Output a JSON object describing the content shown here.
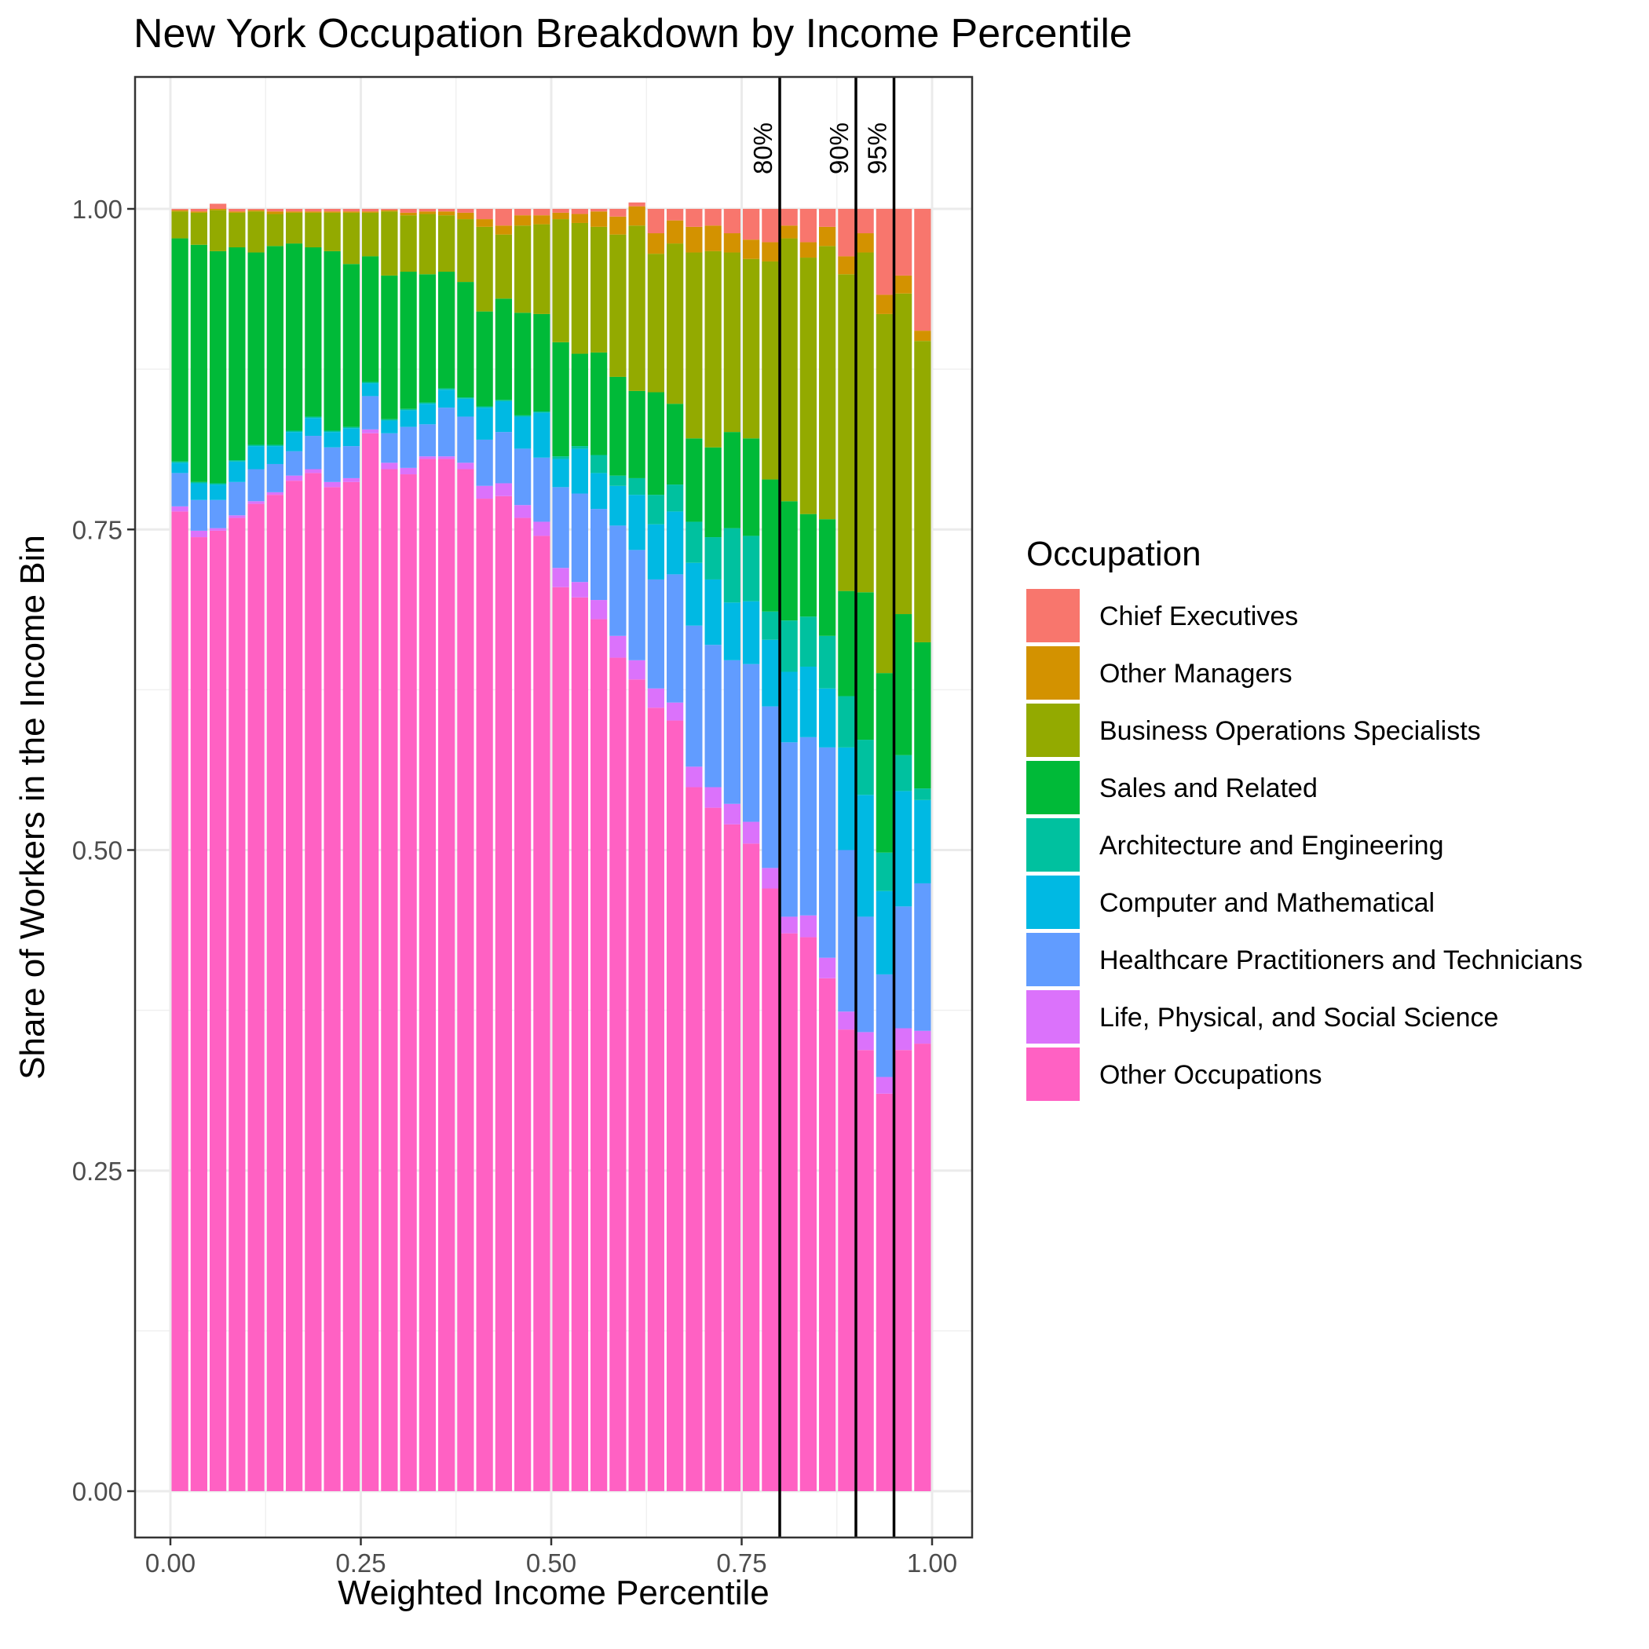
{
  "chart_data": {
    "type": "bar",
    "stacked": true,
    "title": "New York Occupation Breakdown by Income Percentile",
    "xlabel": "Weighted Income Percentile",
    "ylabel": "Share of Workers in the Income Bin",
    "xlim": [
      0,
      1
    ],
    "ylim": [
      0,
      1
    ],
    "x_ticks": [
      "0.00",
      "0.25",
      "0.50",
      "0.75",
      "1.00"
    ],
    "y_ticks": [
      "0.00",
      "0.25",
      "0.50",
      "0.75",
      "1.00"
    ],
    "grid": true,
    "legend_position": "right",
    "legend_title": "Occupation",
    "reference_lines": [
      {
        "x": 0.8,
        "label": "80%"
      },
      {
        "x": 0.9,
        "label": "90%"
      },
      {
        "x": 0.95,
        "label": "95%"
      }
    ],
    "x": [
      0.0125,
      0.0375,
      0.0625,
      0.0875,
      0.1125,
      0.1375,
      0.1625,
      0.1875,
      0.2125,
      0.2375,
      0.2625,
      0.2875,
      0.3125,
      0.3375,
      0.3625,
      0.3875,
      0.4125,
      0.4375,
      0.4625,
      0.4875,
      0.5125,
      0.5375,
      0.5625,
      0.5875,
      0.6125,
      0.6375,
      0.6625,
      0.6875,
      0.7125,
      0.7375,
      0.7625,
      0.7875,
      0.8125,
      0.8375,
      0.8625,
      0.8875,
      0.9125,
      0.9375,
      0.9625,
      0.9875
    ],
    "series": [
      {
        "name": "Other Occupations",
        "color": "#FF61C3",
        "values": [
          0.764,
          0.744,
          0.749,
          0.759,
          0.77,
          0.777,
          0.788,
          0.794,
          0.783,
          0.787,
          0.825,
          0.797,
          0.793,
          0.805,
          0.805,
          0.797,
          0.774,
          0.776,
          0.759,
          0.745,
          0.705,
          0.697,
          0.68,
          0.65,
          0.633,
          0.611,
          0.601,
          0.549,
          0.533,
          0.52,
          0.505,
          0.47,
          0.435,
          0.432,
          0.4,
          0.36,
          0.344,
          0.31,
          0.344,
          0.349
        ]
      },
      {
        "name": "Life, Physical, and Social Science",
        "color": "#DB72FB",
        "values": [
          0.004,
          0.005,
          0.002,
          0.002,
          0.002,
          0.002,
          0.004,
          0.003,
          0.004,
          0.003,
          0.003,
          0.005,
          0.005,
          0.002,
          0.002,
          0.005,
          0.01,
          0.01,
          0.01,
          0.011,
          0.015,
          0.012,
          0.015,
          0.017,
          0.015,
          0.015,
          0.014,
          0.016,
          0.016,
          0.016,
          0.017,
          0.016,
          0.013,
          0.017,
          0.016,
          0.014,
          0.014,
          0.013,
          0.017,
          0.01
        ]
      },
      {
        "name": "Healthcare Practitioners and Technicians",
        "color": "#619CFF",
        "values": [
          0.026,
          0.024,
          0.022,
          0.026,
          0.025,
          0.022,
          0.019,
          0.026,
          0.027,
          0.025,
          0.026,
          0.023,
          0.032,
          0.025,
          0.038,
          0.036,
          0.036,
          0.04,
          0.044,
          0.05,
          0.063,
          0.069,
          0.071,
          0.086,
          0.086,
          0.085,
          0.1,
          0.11,
          0.111,
          0.112,
          0.123,
          0.126,
          0.136,
          0.139,
          0.164,
          0.126,
          0.09,
          0.08,
          0.095,
          0.115
        ]
      },
      {
        "name": "Computer and Mathematical",
        "color": "#00B9E3",
        "values": [
          0.008,
          0.013,
          0.012,
          0.016,
          0.018,
          0.014,
          0.015,
          0.014,
          0.012,
          0.014,
          0.01,
          0.01,
          0.013,
          0.016,
          0.014,
          0.014,
          0.025,
          0.024,
          0.025,
          0.035,
          0.022,
          0.035,
          0.028,
          0.031,
          0.043,
          0.043,
          0.049,
          0.049,
          0.051,
          0.045,
          0.049,
          0.052,
          0.055,
          0.055,
          0.046,
          0.08,
          0.095,
          0.065,
          0.09,
          0.065
        ]
      },
      {
        "name": "Architecture and Engineering",
        "color": "#00C19F",
        "values": [
          0.001,
          0.001,
          0.001,
          0.001,
          0.001,
          0.001,
          0.001,
          0.001,
          0.001,
          0.001,
          0.001,
          0.001,
          0.001,
          0.001,
          0.001,
          0.001,
          0.001,
          0.001,
          0.001,
          0.001,
          0.002,
          0.002,
          0.014,
          0.008,
          0.013,
          0.023,
          0.021,
          0.032,
          0.033,
          0.058,
          0.051,
          0.022,
          0.04,
          0.039,
          0.041,
          0.04,
          0.043,
          0.03,
          0.028,
          0.009
        ]
      },
      {
        "name": "Sales and Related",
        "color": "#00BA38",
        "values": [
          0.174,
          0.185,
          0.181,
          0.166,
          0.15,
          0.155,
          0.146,
          0.132,
          0.14,
          0.127,
          0.098,
          0.112,
          0.107,
          0.1,
          0.091,
          0.09,
          0.074,
          0.079,
          0.08,
          0.076,
          0.089,
          0.072,
          0.08,
          0.077,
          0.068,
          0.08,
          0.063,
          0.065,
          0.07,
          0.075,
          0.076,
          0.103,
          0.093,
          0.08,
          0.091,
          0.082,
          0.115,
          0.14,
          0.11,
          0.114
        ]
      },
      {
        "name": "Business Operations Specialists",
        "color": "#93AA00",
        "values": [
          0.021,
          0.025,
          0.032,
          0.027,
          0.032,
          0.025,
          0.024,
          0.027,
          0.03,
          0.04,
          0.034,
          0.05,
          0.044,
          0.047,
          0.044,
          0.049,
          0.066,
          0.05,
          0.068,
          0.07,
          0.096,
          0.102,
          0.098,
          0.111,
          0.129,
          0.108,
          0.125,
          0.145,
          0.153,
          0.14,
          0.14,
          0.17,
          0.205,
          0.2,
          0.213,
          0.247,
          0.265,
          0.28,
          0.25,
          0.235
        ]
      },
      {
        "name": "Other Managers",
        "color": "#D39200",
        "values": [
          0.001,
          0.001,
          0.001,
          0.001,
          0.001,
          0.002,
          0.001,
          0.001,
          0.001,
          0.001,
          0.001,
          0.001,
          0.002,
          0.002,
          0.003,
          0.005,
          0.006,
          0.007,
          0.008,
          0.007,
          0.005,
          0.007,
          0.012,
          0.014,
          0.015,
          0.016,
          0.018,
          0.02,
          0.02,
          0.015,
          0.015,
          0.015,
          0.01,
          0.012,
          0.015,
          0.014,
          0.015,
          0.015,
          0.014,
          0.008
        ]
      },
      {
        "name": "Chief Executives",
        "color": "#F8766D",
        "values": [
          0.001,
          0.002,
          0.004,
          0.002,
          0.001,
          0.002,
          0.002,
          0.002,
          0.002,
          0.002,
          0.002,
          0.001,
          0.003,
          0.002,
          0.002,
          0.003,
          0.008,
          0.013,
          0.005,
          0.005,
          0.003,
          0.004,
          0.002,
          0.006,
          0.003,
          0.019,
          0.009,
          0.014,
          0.013,
          0.019,
          0.024,
          0.026,
          0.013,
          0.026,
          0.014,
          0.037,
          0.019,
          0.067,
          0.052,
          0.095
        ]
      }
    ],
    "legend_order": [
      "Chief Executives",
      "Other Managers",
      "Business Operations Specialists",
      "Sales and Related",
      "Architecture and Engineering",
      "Computer and Mathematical",
      "Healthcare Practitioners and Technicians",
      "Life, Physical, and Social Science",
      "Other Occupations"
    ]
  }
}
